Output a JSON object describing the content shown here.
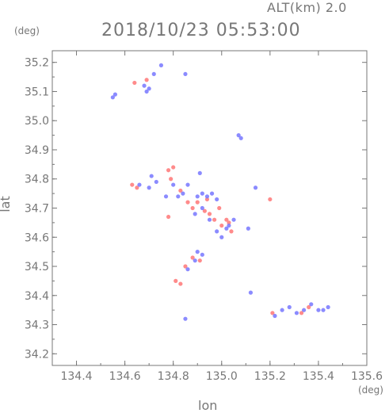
{
  "header": {
    "altitude": "ALT(km) 2.0",
    "datetime": "2018/10/23 05:53:00"
  },
  "axes": {
    "y_unit": "(deg)",
    "x_unit": "(deg)",
    "xlabel": "lon",
    "ylabel": "lat"
  },
  "colors": {
    "frame": "#777777",
    "positive": "#ff7777",
    "negative": "#7777ff"
  },
  "chart_data": {
    "type": "scatter",
    "xlim": [
      134.3,
      135.6
    ],
    "ylim": [
      34.16,
      35.24
    ],
    "xticks": [
      134.4,
      134.6,
      134.8,
      135.0,
      135.2,
      135.4,
      135.6
    ],
    "yticks": [
      34.2,
      34.3,
      34.4,
      34.5,
      34.6,
      34.7,
      34.8,
      34.9,
      35.0,
      35.1,
      35.2
    ],
    "xtick_labels": [
      "134.4",
      "134.6",
      "134.8",
      "135.0",
      "135.2",
      "135.4",
      "135.6"
    ],
    "ytick_labels": [
      "34.2",
      "34.3",
      "34.4",
      "34.5",
      "34.6",
      "34.7",
      "34.8",
      "34.9",
      "35.0",
      "35.1",
      "35.2"
    ],
    "grid": false,
    "series": [
      {
        "color": "#ff7777",
        "points": [
          [
            134.64,
            35.13
          ],
          [
            134.69,
            35.14
          ],
          [
            134.63,
            34.78
          ],
          [
            134.65,
            34.77
          ],
          [
            134.78,
            34.83
          ],
          [
            134.8,
            34.84
          ],
          [
            134.79,
            34.8
          ],
          [
            134.83,
            34.76
          ],
          [
            134.86,
            34.72
          ],
          [
            134.88,
            34.7
          ],
          [
            134.9,
            34.72
          ],
          [
            134.93,
            34.69
          ],
          [
            134.95,
            34.68
          ],
          [
            134.97,
            34.66
          ],
          [
            135.0,
            34.64
          ],
          [
            135.02,
            34.66
          ],
          [
            135.04,
            34.62
          ],
          [
            135.03,
            34.65
          ],
          [
            134.91,
            34.52
          ],
          [
            134.88,
            34.53
          ],
          [
            134.85,
            34.5
          ],
          [
            134.81,
            34.45
          ],
          [
            134.83,
            34.44
          ],
          [
            135.2,
            34.73
          ],
          [
            135.21,
            34.34
          ],
          [
            135.33,
            34.34
          ],
          [
            135.36,
            34.36
          ],
          [
            134.78,
            34.67
          ],
          [
            134.99,
            34.7
          ],
          [
            134.94,
            34.73
          ]
        ]
      },
      {
        "color": "#7777ff",
        "points": [
          [
            134.55,
            35.08
          ],
          [
            134.56,
            35.09
          ],
          [
            134.68,
            35.12
          ],
          [
            134.69,
            35.1
          ],
          [
            134.7,
            35.11
          ],
          [
            134.75,
            35.19
          ],
          [
            134.72,
            35.16
          ],
          [
            134.85,
            35.16
          ],
          [
            134.66,
            34.78
          ],
          [
            134.7,
            34.77
          ],
          [
            134.73,
            34.79
          ],
          [
            134.8,
            34.78
          ],
          [
            134.82,
            34.74
          ],
          [
            134.84,
            34.75
          ],
          [
            134.86,
            34.78
          ],
          [
            134.9,
            34.74
          ],
          [
            134.92,
            34.75
          ],
          [
            134.94,
            34.74
          ],
          [
            134.96,
            34.75
          ],
          [
            134.98,
            34.73
          ],
          [
            134.89,
            34.68
          ],
          [
            134.92,
            34.7
          ],
          [
            134.95,
            34.66
          ],
          [
            134.98,
            34.62
          ],
          [
            135.0,
            34.6
          ],
          [
            135.02,
            34.63
          ],
          [
            135.05,
            34.66
          ],
          [
            135.07,
            34.95
          ],
          [
            135.08,
            34.94
          ],
          [
            134.91,
            34.82
          ],
          [
            135.11,
            34.63
          ],
          [
            135.14,
            34.77
          ],
          [
            134.9,
            34.55
          ],
          [
            134.89,
            34.52
          ],
          [
            134.86,
            34.49
          ],
          [
            134.92,
            34.54
          ],
          [
            134.85,
            34.32
          ],
          [
            135.12,
            34.41
          ],
          [
            135.22,
            34.33
          ],
          [
            135.25,
            34.35
          ],
          [
            135.28,
            34.36
          ],
          [
            135.31,
            34.34
          ],
          [
            135.34,
            34.35
          ],
          [
            135.37,
            34.37
          ],
          [
            135.4,
            34.35
          ],
          [
            135.42,
            34.35
          ],
          [
            135.44,
            34.36
          ],
          [
            134.71,
            34.81
          ],
          [
            134.77,
            34.74
          ],
          [
            135.03,
            34.64
          ]
        ]
      }
    ]
  }
}
